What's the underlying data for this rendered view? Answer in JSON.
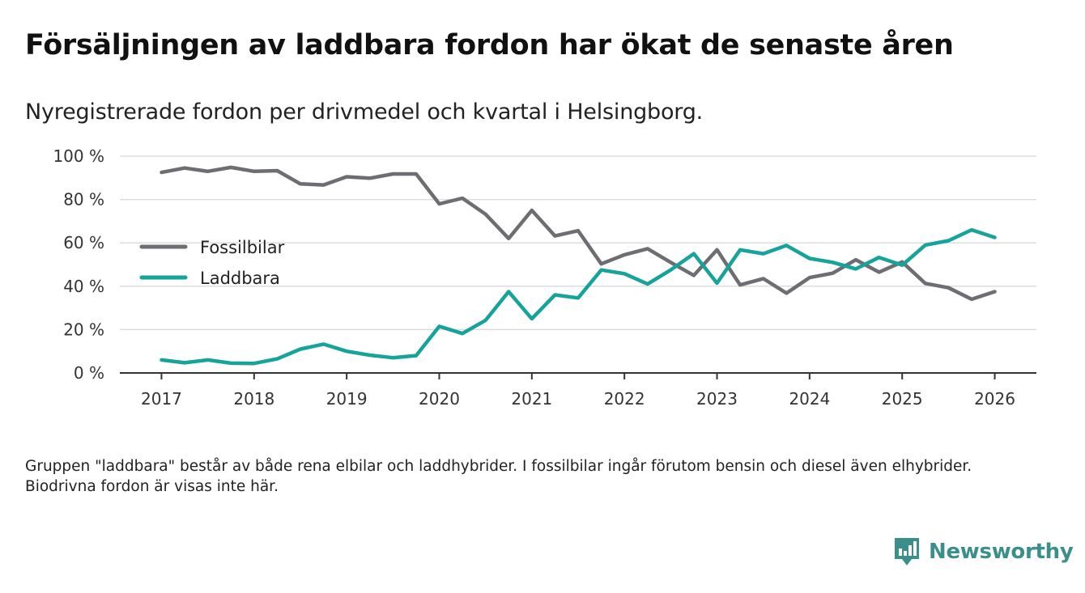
{
  "header": {
    "title": "Försäljningen av laddbara fordon har ökat de senaste åren",
    "subtitle": "Nyregistrerade fordon per drivmedel och kvartal i Helsingborg."
  },
  "footer": {
    "note": "Gruppen \"laddbara\" består av både rena elbilar och laddhybrider. I fossilbilar ingår förutom bensin och diesel även elhybrider. Biodrivna fordon är visas inte här.",
    "brand": "Newsworthy",
    "brand_color": "#3a8f8a"
  },
  "chart_data": {
    "type": "line",
    "title": "Försäljningen av laddbara fordon har ökat de senaste åren",
    "subtitle": "Nyregistrerade fordon per drivmedel och kvartal i Helsingborg.",
    "xlabel": "",
    "ylabel": "",
    "x": [
      2017.0,
      2017.25,
      2017.5,
      2017.75,
      2018.0,
      2018.25,
      2018.5,
      2018.75,
      2019.0,
      2019.25,
      2019.5,
      2019.75,
      2020.0,
      2020.25,
      2020.5,
      2020.75,
      2021.0,
      2021.25,
      2021.5,
      2021.75,
      2022.0,
      2022.25,
      2022.5,
      2022.75,
      2023.0,
      2023.25,
      2023.5,
      2023.75,
      2024.0,
      2024.25,
      2024.5,
      2024.75,
      2025.0,
      2025.25,
      2025.5,
      2025.75,
      2026.0
    ],
    "xlim": [
      2016.55,
      2026.45
    ],
    "ylim": [
      0,
      100
    ],
    "x_ticks": [
      2017,
      2018,
      2019,
      2020,
      2021,
      2022,
      2023,
      2024,
      2025,
      2026
    ],
    "x_tick_labels": [
      "2017",
      "2018",
      "2019",
      "2020",
      "2021",
      "2022",
      "2023",
      "2024",
      "2025",
      "2026"
    ],
    "y_ticks": [
      0,
      20,
      40,
      60,
      80,
      100
    ],
    "y_tick_labels": [
      "0 %",
      "20 %",
      "40 %",
      "60 %",
      "80 %",
      "100 %"
    ],
    "grid": true,
    "legend_position": "left",
    "series": [
      {
        "name": "Fossilbilar",
        "color": "#6e6d72",
        "values": [
          92.5,
          94.5,
          93,
          94.8,
          93,
          93.3,
          87.2,
          86.7,
          90.5,
          89.8,
          91.8,
          91.8,
          78,
          80.6,
          73.2,
          62,
          75,
          63.2,
          65.6,
          50.3,
          54.5,
          57.3,
          51,
          45,
          56.8,
          40.6,
          43.5,
          36.8,
          44,
          46,
          52.2,
          46.5,
          51.2,
          41.3,
          39.3,
          34,
          37.5
        ]
      },
      {
        "name": "Laddbara",
        "color": "#16a39a",
        "values": [
          6,
          4.7,
          6,
          4.5,
          4.4,
          6.5,
          11,
          13.3,
          10,
          8.2,
          7,
          8,
          21.5,
          18.2,
          24.3,
          37.5,
          25,
          36,
          34.6,
          47.5,
          45.8,
          41,
          47.5,
          55,
          41.4,
          56.8,
          55,
          58.8,
          52.8,
          51,
          48,
          53.3,
          49.7,
          59,
          61,
          66,
          62.5
        ]
      }
    ]
  }
}
